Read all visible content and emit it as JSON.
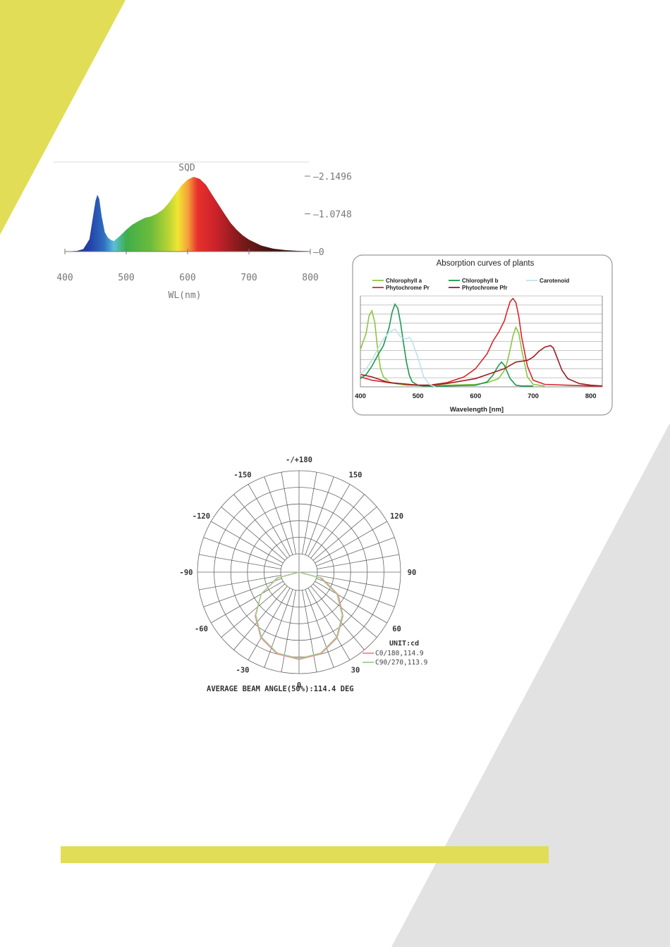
{
  "theme": {
    "yellow": "#e1dd57",
    "gray": "#e2e2e2"
  },
  "chart_data": [
    {
      "type": "area",
      "title": "SQD",
      "xlabel": "WL(nm)",
      "ylabel": "",
      "xlim": [
        400,
        800
      ],
      "ylim": [
        0,
        2.1496
      ],
      "x_ticks": [
        "400",
        "500",
        "600",
        "700",
        "800"
      ],
      "y_ticks": [
        "2.1496",
        "1.0748",
        "0"
      ],
      "x": [
        400,
        420,
        430,
        440,
        445,
        450,
        453,
        456,
        460,
        465,
        470,
        475,
        480,
        490,
        500,
        510,
        520,
        530,
        540,
        550,
        560,
        570,
        580,
        590,
        600,
        610,
        620,
        630,
        640,
        650,
        660,
        670,
        680,
        690,
        700,
        720,
        740,
        760,
        780,
        800
      ],
      "y": [
        0.0,
        0.02,
        0.07,
        0.35,
        0.9,
        1.45,
        1.62,
        1.5,
        1.0,
        0.55,
        0.4,
        0.33,
        0.3,
        0.45,
        0.62,
        0.77,
        0.87,
        0.96,
        1.0,
        1.08,
        1.2,
        1.4,
        1.65,
        1.88,
        2.05,
        2.13,
        2.07,
        1.9,
        1.62,
        1.35,
        1.08,
        0.82,
        0.62,
        0.46,
        0.34,
        0.17,
        0.08,
        0.04,
        0.02,
        0.01
      ]
    },
    {
      "type": "line",
      "title": "Absorption curves of plants",
      "xlabel": "Wavelength [nm]",
      "ylabel": "",
      "xlim": [
        400,
        820
      ],
      "x_ticks": [
        "400",
        "500",
        "600",
        "700",
        "800"
      ],
      "legend_position": "top",
      "series": [
        {
          "name": "Chlorophyll a",
          "color": "#8dc63f",
          "x": [
            400,
            405,
            410,
            415,
            420,
            425,
            430,
            435,
            440,
            450,
            460,
            480,
            500,
            550,
            600,
            620,
            640,
            650,
            655,
            660,
            665,
            670,
            675,
            680,
            690,
            700,
            720
          ],
          "y": [
            0.45,
            0.55,
            0.65,
            0.86,
            0.92,
            0.78,
            0.45,
            0.22,
            0.12,
            0.06,
            0.04,
            0.02,
            0.02,
            0.02,
            0.03,
            0.05,
            0.1,
            0.2,
            0.3,
            0.45,
            0.62,
            0.72,
            0.65,
            0.45,
            0.12,
            0.03,
            0.01
          ]
        },
        {
          "name": "Phytochrome Pr",
          "color": "#d7262a",
          "x": [
            400,
            420,
            450,
            500,
            520,
            550,
            580,
            600,
            620,
            630,
            640,
            650,
            655,
            660,
            665,
            670,
            675,
            680,
            690,
            700,
            720,
            760,
            800,
            820
          ],
          "y": [
            0.12,
            0.08,
            0.05,
            0.02,
            0.02,
            0.05,
            0.12,
            0.22,
            0.4,
            0.55,
            0.66,
            0.8,
            0.92,
            1.03,
            1.07,
            1.02,
            0.85,
            0.6,
            0.25,
            0.08,
            0.03,
            0.02,
            0.01,
            0.01
          ]
        },
        {
          "name": "Chlorophyll b",
          "color": "#1c9a4d",
          "x": [
            400,
            410,
            420,
            430,
            440,
            450,
            455,
            460,
            465,
            470,
            475,
            480,
            485,
            490,
            500,
            510,
            550,
            600,
            620,
            630,
            640,
            645,
            650,
            655,
            660,
            670,
            680,
            700
          ],
          "y": [
            0.1,
            0.15,
            0.25,
            0.38,
            0.5,
            0.72,
            0.9,
            1.0,
            0.95,
            0.76,
            0.52,
            0.3,
            0.14,
            0.06,
            0.02,
            0.01,
            0.01,
            0.02,
            0.06,
            0.14,
            0.26,
            0.3,
            0.26,
            0.18,
            0.1,
            0.02,
            0.01,
            0.01
          ]
        },
        {
          "name": "Phytochrome Pfr",
          "color": "#9e1b20",
          "x": [
            400,
            420,
            450,
            500,
            520,
            550,
            600,
            650,
            670,
            690,
            700,
            710,
            720,
            730,
            735,
            740,
            750,
            760,
            780,
            800,
            820
          ],
          "y": [
            0.15,
            0.12,
            0.05,
            0.02,
            0.02,
            0.04,
            0.1,
            0.22,
            0.3,
            0.32,
            0.36,
            0.43,
            0.48,
            0.5,
            0.47,
            0.38,
            0.2,
            0.1,
            0.04,
            0.02,
            0.01
          ]
        },
        {
          "name": "Carotenoid",
          "color": "#bde3ec",
          "x": [
            400,
            410,
            420,
            430,
            440,
            450,
            460,
            470,
            480,
            485,
            490,
            500,
            510,
            520,
            530
          ],
          "y": [
            0.15,
            0.22,
            0.32,
            0.46,
            0.58,
            0.66,
            0.7,
            0.6,
            0.58,
            0.6,
            0.55,
            0.35,
            0.12,
            0.03,
            0.0
          ]
        }
      ]
    },
    {
      "type": "polar",
      "unit": "UNIT:cd",
      "caption": "AVERAGE BEAM ANGLE(50%):114.4 DEG",
      "angle_labels": [
        "-/+180",
        "150",
        "120",
        "90",
        "60",
        "30",
        "0",
        "-30",
        "-60",
        "-90",
        "-120",
        "-150"
      ],
      "series": [
        {
          "name": "C0/180,114.9",
          "color": "#e98a95",
          "angles": [
            -90,
            -75,
            -60,
            -45,
            -30,
            -15,
            0,
            15,
            30,
            45,
            60,
            75,
            90
          ],
          "values": [
            0.0,
            0.26,
            0.5,
            0.71,
            0.87,
            0.97,
            1.0,
            0.97,
            0.87,
            0.71,
            0.52,
            0.27,
            0.0
          ]
        },
        {
          "name": "C90/270,113.9",
          "color": "#9fcf8c",
          "angles": [
            -90,
            -75,
            -60,
            -45,
            -30,
            -15,
            0,
            15,
            30,
            45,
            60,
            75,
            90
          ],
          "values": [
            0.0,
            0.25,
            0.5,
            0.7,
            0.86,
            0.96,
            0.99,
            0.96,
            0.86,
            0.7,
            0.5,
            0.25,
            0.0
          ]
        }
      ]
    }
  ]
}
